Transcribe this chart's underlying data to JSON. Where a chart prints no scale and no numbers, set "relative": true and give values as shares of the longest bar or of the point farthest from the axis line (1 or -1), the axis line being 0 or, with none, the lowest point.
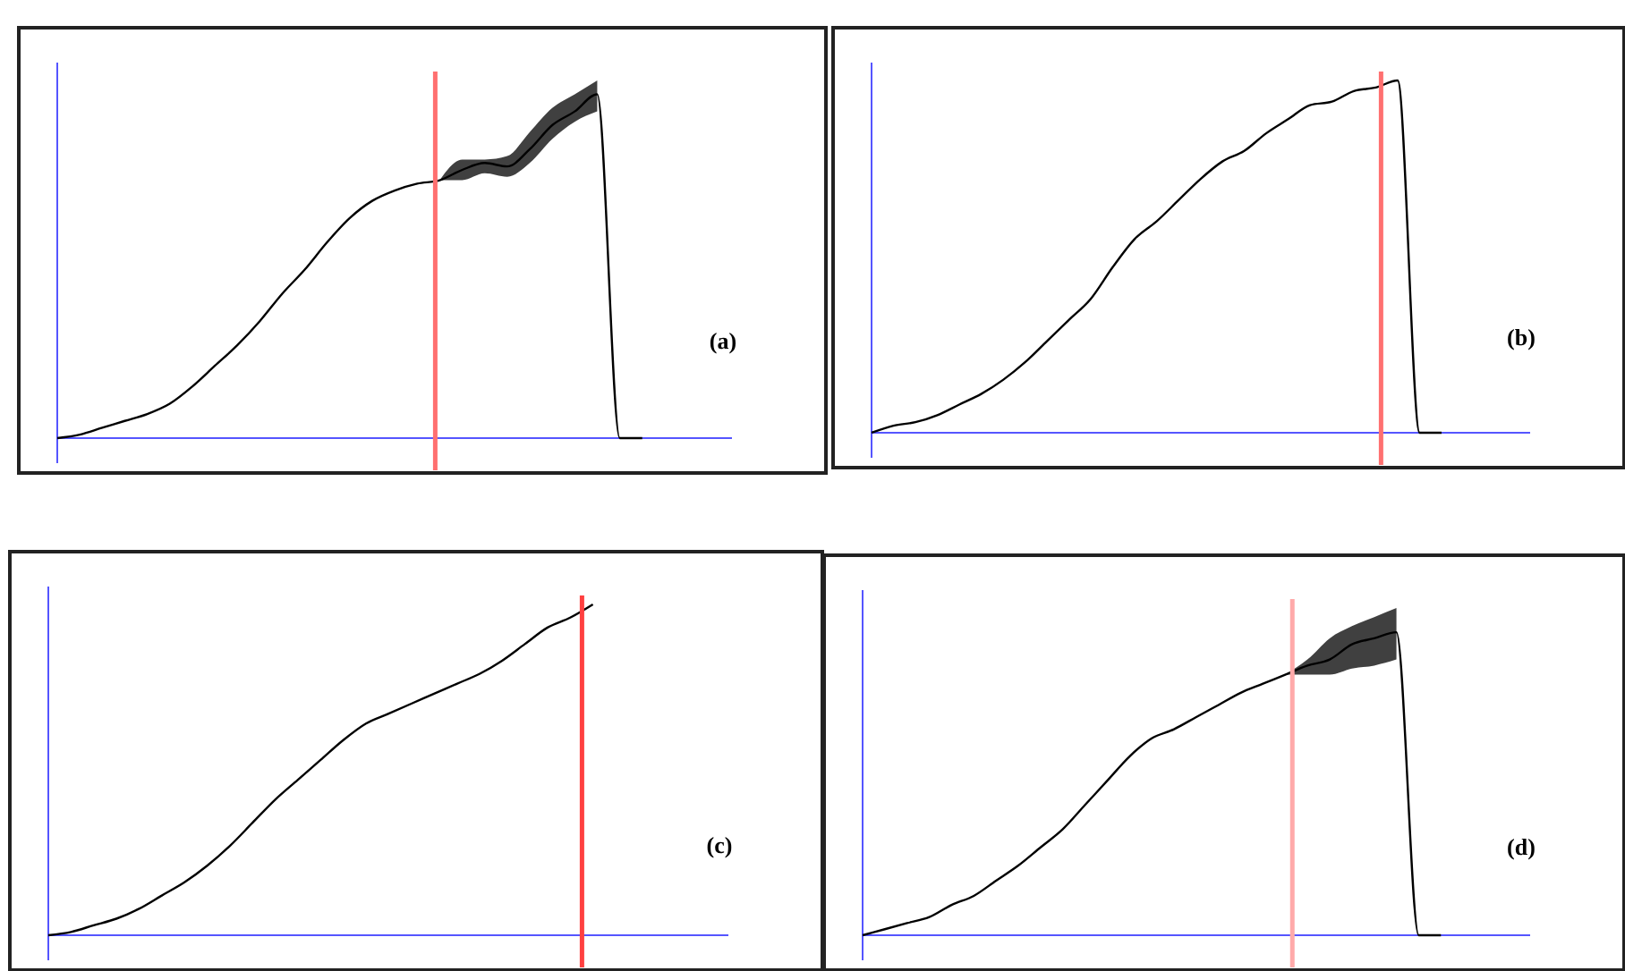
{
  "chart_data": [
    {
      "type": "line",
      "relative": true,
      "categories": [
        null,
        null,
        null,
        null,
        null,
        null,
        null,
        null,
        null,
        null,
        null,
        null,
        null,
        null,
        null,
        null,
        null,
        null,
        null,
        null,
        null,
        null,
        null,
        null,
        null,
        null,
        null,
        null,
        null
      ],
      "series": [
        {
          "color": "#000000",
          "values": [
            0.0,
            0.01,
            0.03,
            0.05,
            0.07,
            0.1,
            0.15,
            0.21,
            0.27,
            0.34,
            0.42,
            0.49,
            0.57,
            0.64,
            0.69,
            0.72,
            0.74,
            0.75,
            0.78,
            0.8,
            0.79,
            0.84,
            0.91,
            0.95,
            1.0,
            0,
            0,
            null,
            null
          ],
          "lower": [
            null,
            null,
            null,
            null,
            null,
            null,
            null,
            null,
            null,
            null,
            null,
            null,
            null,
            null,
            null,
            null,
            null,
            0.75,
            0.75,
            0.77,
            0.76,
            0.8,
            0.87,
            0.92,
            0.95,
            null,
            null,
            null,
            null
          ],
          "upper": [
            null,
            null,
            null,
            null,
            null,
            null,
            null,
            null,
            null,
            null,
            null,
            null,
            null,
            null,
            null,
            null,
            null,
            0.75,
            0.81,
            0.81,
            0.82,
            0.89,
            0.96,
            1.0,
            1.04,
            null,
            null,
            null,
            null
          ]
        }
      ],
      "annotations": [
        "(a)"
      ],
      "marker": "none",
      "line_style": "solid"
    },
    {
      "type": "line",
      "relative": true,
      "categories": [
        null,
        null,
        null,
        null,
        null,
        null,
        null,
        null,
        null,
        null,
        null,
        null,
        null,
        null,
        null,
        null,
        null,
        null,
        null,
        null,
        null,
        null,
        null,
        null,
        null,
        null,
        null,
        null,
        null
      ],
      "series": [
        {
          "color": "#000000",
          "values": [
            0.0,
            0.02,
            0.03,
            0.05,
            0.08,
            0.11,
            0.15,
            0.2,
            0.26,
            0.32,
            0.38,
            0.47,
            0.55,
            0.6,
            0.66,
            0.72,
            0.77,
            0.8,
            0.85,
            0.89,
            0.93,
            0.94,
            0.97,
            0.98,
            1.0,
            0,
            0,
            null,
            null
          ]
        }
      ],
      "annotations": [
        "(b)"
      ],
      "marker": "none",
      "line_style": "solid"
    },
    {
      "type": "line",
      "relative": true,
      "categories": [
        null,
        null,
        null,
        null,
        null,
        null,
        null,
        null,
        null,
        null,
        null,
        null,
        null,
        null,
        null,
        null,
        null,
        null,
        null,
        null,
        null,
        null,
        null,
        null,
        null,
        null,
        null,
        null,
        null
      ],
      "series": [
        {
          "color": "#000000",
          "values": [
            0.0,
            0.01,
            0.03,
            0.05,
            0.08,
            0.12,
            0.16,
            0.21,
            0.27,
            0.34,
            0.41,
            0.47,
            0.53,
            0.59,
            0.64,
            0.67,
            0.7,
            0.73,
            0.76,
            0.79,
            0.83,
            0.88,
            0.93,
            0.96,
            1.0,
            null,
            null,
            null,
            null
          ]
        }
      ],
      "annotations": [
        "(c)"
      ],
      "marker": "none",
      "line_style": "solid"
    },
    {
      "type": "line",
      "relative": true,
      "categories": [
        null,
        null,
        null,
        null,
        null,
        null,
        null,
        null,
        null,
        null,
        null,
        null,
        null,
        null,
        null,
        null,
        null,
        null,
        null,
        null,
        null,
        null,
        null,
        null,
        null,
        null,
        null,
        null,
        null
      ],
      "series": [
        {
          "color": "#000000",
          "values": [
            0.0,
            0.02,
            0.04,
            0.06,
            0.1,
            0.13,
            0.18,
            0.23,
            0.29,
            0.35,
            0.43,
            0.51,
            0.59,
            0.65,
            0.68,
            0.72,
            0.76,
            0.8,
            0.83,
            0.86,
            0.89,
            0.91,
            0.96,
            0.98,
            1.0,
            0,
            0,
            null,
            null
          ],
          "lower": [
            null,
            null,
            null,
            null,
            null,
            null,
            null,
            null,
            null,
            null,
            null,
            null,
            null,
            null,
            null,
            null,
            null,
            null,
            null,
            0.86,
            0.86,
            0.86,
            0.88,
            0.89,
            0.91,
            null,
            null,
            null,
            null
          ],
          "upper": [
            null,
            null,
            null,
            null,
            null,
            null,
            null,
            null,
            null,
            null,
            null,
            null,
            null,
            null,
            null,
            null,
            null,
            null,
            null,
            0.86,
            0.91,
            0.98,
            1.02,
            1.05,
            1.08,
            null,
            null,
            null,
            null
          ]
        }
      ],
      "annotations": [
        "(d)"
      ],
      "marker": "none",
      "line_style": "solid"
    }
  ]
}
